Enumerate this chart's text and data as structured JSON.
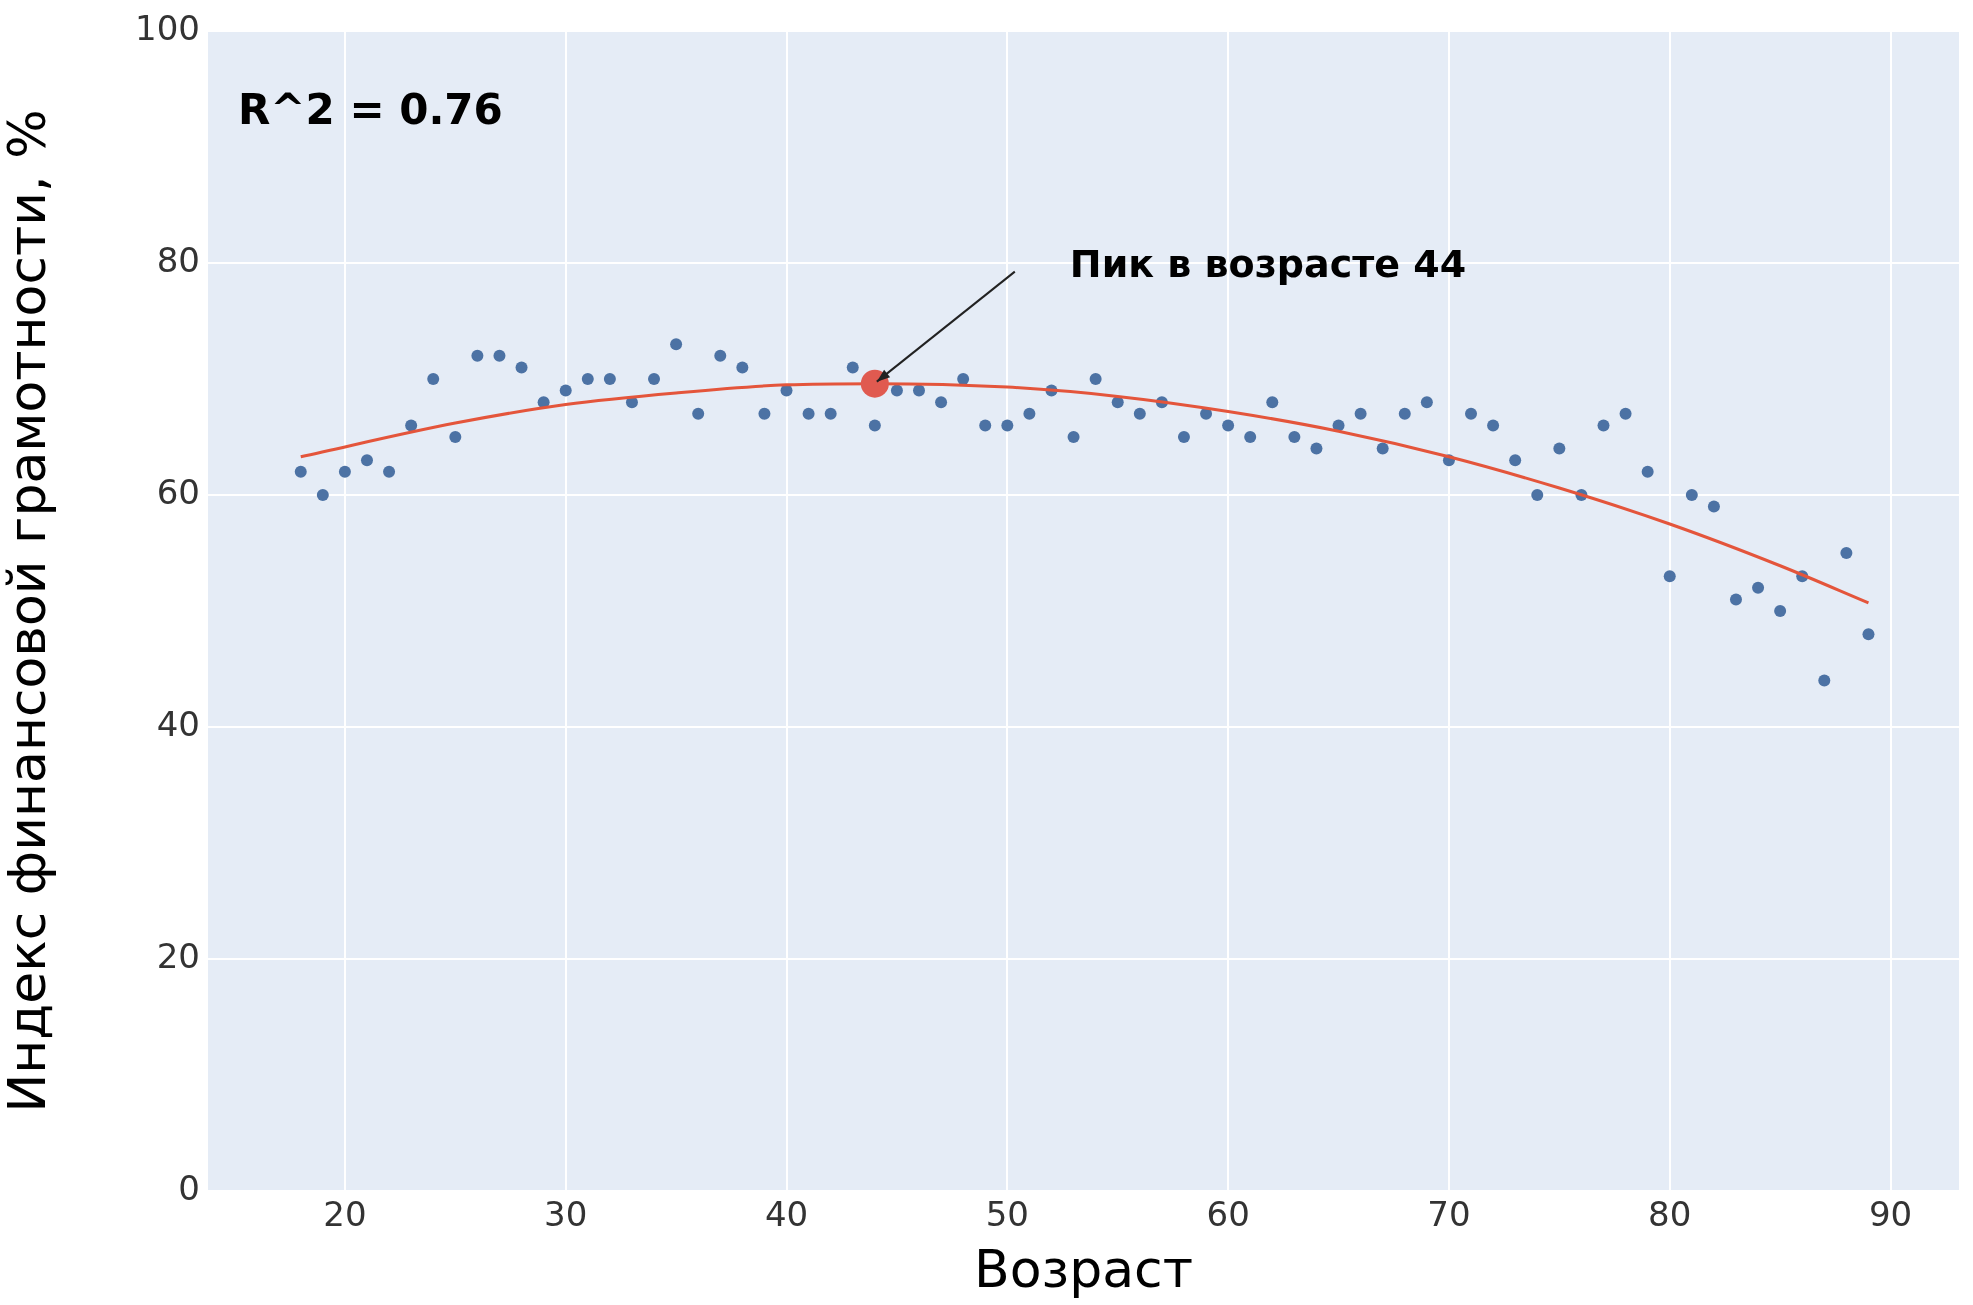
{
  "chart_data": {
    "type": "scatter",
    "xlabel": "Возраст",
    "ylabel": "Индекс финансовой грамотности, %",
    "xlim": [
      13.8,
      93.1
    ],
    "xticks": [
      20,
      30,
      40,
      50,
      60,
      70,
      80,
      90
    ],
    "ylim": [
      0,
      100
    ],
    "yticks": [
      0,
      20,
      40,
      60,
      80,
      100
    ],
    "grid": true,
    "legend": false,
    "annotations": [
      "R^2 = 0.76",
      "Пик в возрасте 44"
    ],
    "series": [
      {
        "color": "#4c72a4",
        "marker": "circle",
        "x": [
          18,
          19,
          20,
          21,
          22,
          23,
          24,
          25,
          26,
          27,
          28,
          29,
          30,
          31,
          32,
          33,
          34,
          35,
          36,
          37,
          38,
          39,
          40,
          41,
          42,
          43,
          44,
          45,
          46,
          47,
          48,
          49,
          50,
          51,
          52,
          53,
          54,
          55,
          56,
          57,
          58,
          59,
          60,
          61,
          62,
          63,
          64,
          65,
          66,
          67,
          68,
          69,
          70,
          71,
          72,
          73,
          74,
          75,
          76,
          77,
          78,
          79,
          80,
          81,
          82,
          83,
          84,
          85,
          86,
          87,
          88,
          89
        ],
        "values": [
          62,
          60,
          62,
          63,
          62,
          66,
          70,
          65,
          72,
          72,
          71,
          68,
          69,
          70,
          70,
          68,
          70,
          73,
          67,
          72,
          71,
          67,
          69,
          67,
          67,
          71,
          66,
          69,
          69,
          68,
          70,
          66,
          66,
          67,
          69,
          65,
          70,
          68,
          67,
          68,
          65,
          67,
          66,
          65,
          68,
          65,
          64,
          66,
          67,
          64,
          67,
          68,
          63,
          67,
          66,
          63,
          60,
          64,
          60,
          66,
          67,
          62,
          53,
          60,
          59,
          51,
          52,
          50,
          53,
          44,
          55,
          48
        ]
      },
      {
        "type": "line",
        "marker": "none",
        "color": "#e4553b",
        "x": [
          18,
          25,
          30,
          35,
          40,
          44,
          50,
          55,
          60,
          65,
          70,
          75,
          80,
          85,
          89
        ],
        "values": [
          63.3,
          66.2,
          67.8,
          68.8,
          69.5,
          69.6,
          69.3,
          68.5,
          67.2,
          65.5,
          63.3,
          60.6,
          57.5,
          53.9,
          50.7
        ]
      },
      {
        "color": "#e05a50",
        "marker": "circle",
        "x": [
          44
        ],
        "values": [
          69.6
        ]
      }
    ]
  }
}
